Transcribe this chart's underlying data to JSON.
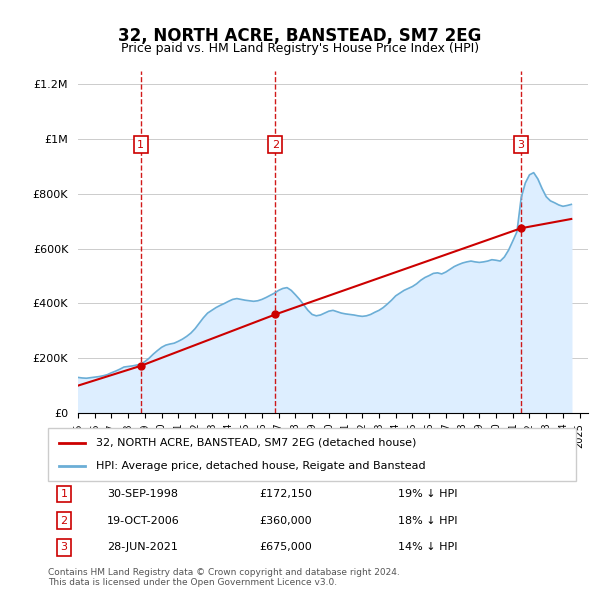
{
  "title": "32, NORTH ACRE, BANSTEAD, SM7 2EG",
  "subtitle": "Price paid vs. HM Land Registry's House Price Index (HPI)",
  "ylabel_ticks": [
    "£0",
    "£200K",
    "£400K",
    "£600K",
    "£800K",
    "£1M",
    "£1.2M"
  ],
  "ylabel_values": [
    0,
    200000,
    400000,
    600000,
    800000,
    1000000,
    1200000
  ],
  "ylim": [
    0,
    1250000
  ],
  "xlim_start": 1995.0,
  "xlim_end": 2025.5,
  "transactions": [
    {
      "num": 1,
      "date": "30-SEP-1998",
      "price": 172150,
      "year": 1998.75,
      "pct": "19%",
      "dir": "↓"
    },
    {
      "num": 2,
      "date": "19-OCT-2006",
      "price": 360000,
      "year": 2006.8,
      "pct": "18%",
      "dir": "↓"
    },
    {
      "num": 3,
      "date": "28-JUN-2021",
      "price": 675000,
      "year": 2021.5,
      "pct": "14%",
      "dir": "↓"
    }
  ],
  "legend_line1": "32, NORTH ACRE, BANSTEAD, SM7 2EG (detached house)",
  "legend_line2": "HPI: Average price, detached house, Reigate and Banstead",
  "footnote1": "Contains HM Land Registry data © Crown copyright and database right 2024.",
  "footnote2": "This data is licensed under the Open Government Licence v3.0.",
  "hpi_color": "#a8c4e0",
  "hpi_line_color": "#6baed6",
  "sale_color": "#cc0000",
  "dashed_color": "#cc0000",
  "bg_color": "#ddeeff",
  "plot_bg": "#ffffff",
  "hpi_data_x": [
    1995.0,
    1995.25,
    1995.5,
    1995.75,
    1996.0,
    1996.25,
    1996.5,
    1996.75,
    1997.0,
    1997.25,
    1997.5,
    1997.75,
    1998.0,
    1998.25,
    1998.5,
    1998.75,
    1999.0,
    1999.25,
    1999.5,
    1999.75,
    2000.0,
    2000.25,
    2000.5,
    2000.75,
    2001.0,
    2001.25,
    2001.5,
    2001.75,
    2002.0,
    2002.25,
    2002.5,
    2002.75,
    2003.0,
    2003.25,
    2003.5,
    2003.75,
    2004.0,
    2004.25,
    2004.5,
    2004.75,
    2005.0,
    2005.25,
    2005.5,
    2005.75,
    2006.0,
    2006.25,
    2006.5,
    2006.75,
    2007.0,
    2007.25,
    2007.5,
    2007.75,
    2008.0,
    2008.25,
    2008.5,
    2008.75,
    2009.0,
    2009.25,
    2009.5,
    2009.75,
    2010.0,
    2010.25,
    2010.5,
    2010.75,
    2011.0,
    2011.25,
    2011.5,
    2011.75,
    2012.0,
    2012.25,
    2012.5,
    2012.75,
    2013.0,
    2013.25,
    2013.5,
    2013.75,
    2014.0,
    2014.25,
    2014.5,
    2014.75,
    2015.0,
    2015.25,
    2015.5,
    2015.75,
    2016.0,
    2016.25,
    2016.5,
    2016.75,
    2017.0,
    2017.25,
    2017.5,
    2017.75,
    2018.0,
    2018.25,
    2018.5,
    2018.75,
    2019.0,
    2019.25,
    2019.5,
    2019.75,
    2020.0,
    2020.25,
    2020.5,
    2020.75,
    2021.0,
    2021.25,
    2021.5,
    2021.75,
    2022.0,
    2022.25,
    2022.5,
    2022.75,
    2023.0,
    2023.25,
    2023.5,
    2023.75,
    2024.0,
    2024.25,
    2024.5
  ],
  "hpi_data_y": [
    130000,
    128000,
    127000,
    129000,
    131000,
    133000,
    136000,
    140000,
    147000,
    153000,
    160000,
    168000,
    170000,
    172000,
    175000,
    178000,
    188000,
    200000,
    215000,
    228000,
    240000,
    248000,
    252000,
    255000,
    262000,
    270000,
    280000,
    292000,
    308000,
    328000,
    348000,
    365000,
    375000,
    385000,
    393000,
    400000,
    408000,
    415000,
    418000,
    415000,
    412000,
    410000,
    408000,
    410000,
    415000,
    422000,
    430000,
    438000,
    448000,
    455000,
    458000,
    448000,
    432000,
    415000,
    395000,
    375000,
    360000,
    355000,
    358000,
    365000,
    372000,
    375000,
    370000,
    365000,
    362000,
    360000,
    358000,
    355000,
    353000,
    355000,
    360000,
    368000,
    375000,
    385000,
    398000,
    412000,
    428000,
    438000,
    448000,
    455000,
    462000,
    472000,
    485000,
    495000,
    502000,
    510000,
    512000,
    508000,
    515000,
    525000,
    535000,
    542000,
    548000,
    552000,
    555000,
    552000,
    550000,
    552000,
    555000,
    560000,
    558000,
    555000,
    570000,
    595000,
    628000,
    662000,
    785000,
    840000,
    870000,
    878000,
    855000,
    820000,
    790000,
    775000,
    768000,
    760000,
    755000,
    758000,
    762000
  ],
  "sale_data_x": [
    1998.75,
    2006.8,
    2021.5
  ],
  "sale_data_y": [
    172150,
    360000,
    675000
  ]
}
